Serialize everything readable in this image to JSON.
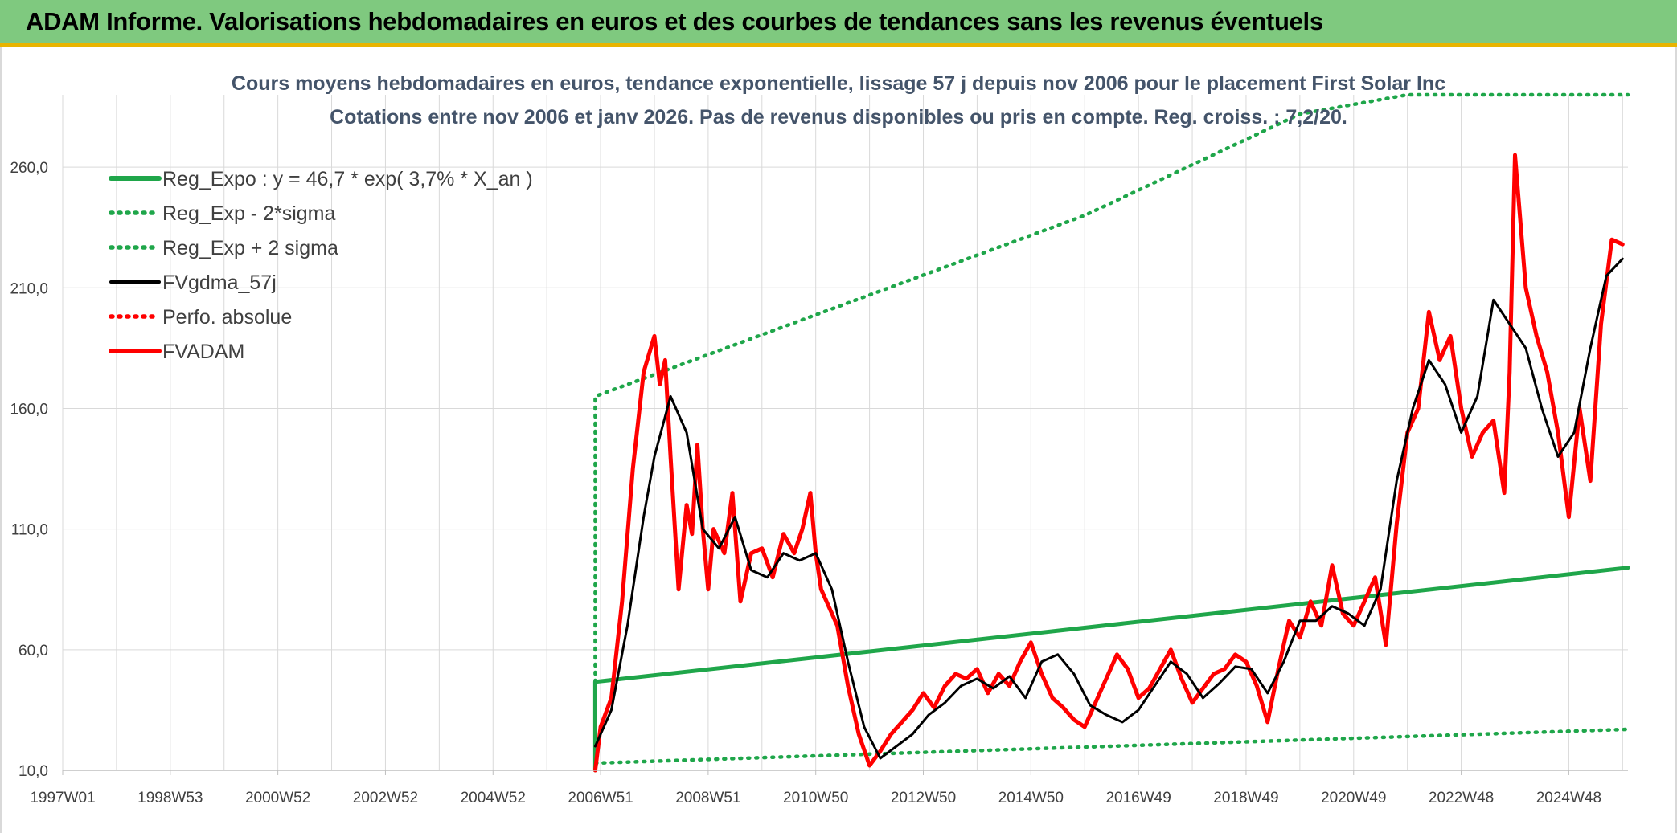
{
  "header": {
    "title": "ADAM Informe. Valorisations hebdomadaires en euros et des courbes de tendances sans les revenus éventuels"
  },
  "chart_data": {
    "type": "line",
    "title": "Cours moyens hebdomadaires en euros, tendance exponentielle, lissage 57 j depuis nov 2006 pour le placement First Solar Inc",
    "subtitle": "Cotations entre nov 2006 et janv 2026. Pas de revenus disponibles ou pris en compte. Reg. croiss. : 7,2/20.",
    "xlabel": "",
    "ylabel": "",
    "x_ticks": [
      "1997W01",
      "1998W53",
      "2000W52",
      "2002W52",
      "2004W52",
      "2006W51",
      "2008W51",
      "2010W50",
      "2012W50",
      "2014W50",
      "2016W49",
      "2018W49",
      "2020W49",
      "2022W48",
      "2024W48"
    ],
    "x_range": [
      1997.0,
      2026.1
    ],
    "y_ticks": [
      10,
      60,
      110,
      160,
      210,
      260
    ],
    "y_tick_labels": [
      "10,0",
      "60,0",
      "110,0",
      "160,0",
      "210,0",
      "260,0"
    ],
    "ylim": [
      10,
      290
    ],
    "grid": true,
    "legend_position": "top-left",
    "series": [
      {
        "name": "Reg_Expo : y = 46,7 * exp( 3,7% *  X_an )",
        "style": "solid-thick",
        "color": "#1fa64a",
        "x": [
          2006.9,
          2006.9,
          2026.1
        ],
        "y": [
          10,
          46.7,
          94
        ]
      },
      {
        "name": "Reg_Exp - 2*sigma",
        "style": "dotted",
        "color": "#1fa64a",
        "x": [
          2006.9,
          2026.1
        ],
        "y": [
          13,
          27
        ]
      },
      {
        "name": "Reg_Exp + 2 sigma",
        "style": "dotted",
        "color": "#1fa64a",
        "x": [
          2006.9,
          2006.9,
          2016,
          2020,
          2022,
          2026.1
        ],
        "y": [
          10,
          165,
          240,
          282,
          290,
          290
        ]
      },
      {
        "name": "FVgdma_57j",
        "style": "solid",
        "color": "#000000",
        "x": [
          2006.9,
          2007.2,
          2007.5,
          2007.8,
          2008.0,
          2008.3,
          2008.6,
          2008.9,
          2009.2,
          2009.5,
          2009.8,
          2010.1,
          2010.4,
          2010.7,
          2011.0,
          2011.3,
          2011.6,
          2011.9,
          2012.2,
          2012.5,
          2012.8,
          2013.1,
          2013.4,
          2013.7,
          2014.0,
          2014.3,
          2014.6,
          2014.9,
          2015.2,
          2015.5,
          2015.8,
          2016.1,
          2016.4,
          2016.7,
          2017.0,
          2017.3,
          2017.6,
          2017.9,
          2018.2,
          2018.5,
          2018.8,
          2019.1,
          2019.4,
          2019.7,
          2020.0,
          2020.3,
          2020.6,
          2020.9,
          2021.2,
          2021.5,
          2021.8,
          2022.1,
          2022.4,
          2022.7,
          2023.0,
          2023.3,
          2023.6,
          2023.9,
          2024.2,
          2024.5,
          2024.8,
          2025.1,
          2025.4,
          2025.7,
          2026.0
        ],
        "y": [
          20,
          35,
          70,
          115,
          140,
          165,
          150,
          110,
          102,
          115,
          93,
          90,
          100,
          97,
          100,
          85,
          55,
          28,
          15,
          20,
          25,
          33,
          38,
          45,
          48,
          44,
          49,
          40,
          55,
          58,
          50,
          37,
          33,
          30,
          35,
          45,
          55,
          50,
          40,
          46,
          53,
          52,
          42,
          55,
          72,
          72,
          78,
          75,
          70,
          85,
          130,
          160,
          180,
          170,
          150,
          165,
          205,
          195,
          185,
          160,
          140,
          150,
          185,
          215,
          222
        ]
      },
      {
        "name": "Perfo. absolue",
        "style": "dotted",
        "color": "#ff0000",
        "x": [],
        "y": []
      },
      {
        "name": "FVADAM",
        "style": "solid-thick",
        "color": "#ff0000",
        "x": [
          2006.9,
          2007.0,
          2007.2,
          2007.4,
          2007.6,
          2007.8,
          2008.0,
          2008.1,
          2008.2,
          2008.3,
          2008.45,
          2008.6,
          2008.7,
          2008.8,
          2008.9,
          2009.0,
          2009.1,
          2009.3,
          2009.45,
          2009.6,
          2009.8,
          2010.0,
          2010.2,
          2010.4,
          2010.6,
          2010.75,
          2010.9,
          2011.0,
          2011.1,
          2011.4,
          2011.6,
          2011.8,
          2012.0,
          2012.2,
          2012.4,
          2012.6,
          2012.8,
          2013.0,
          2013.2,
          2013.4,
          2013.6,
          2013.8,
          2014.0,
          2014.2,
          2014.4,
          2014.6,
          2014.8,
          2015.0,
          2015.2,
          2015.4,
          2015.6,
          2015.8,
          2016.0,
          2016.2,
          2016.4,
          2016.6,
          2016.8,
          2017.0,
          2017.2,
          2017.4,
          2017.6,
          2017.8,
          2018.0,
          2018.2,
          2018.4,
          2018.6,
          2018.8,
          2019.0,
          2019.2,
          2019.4,
          2019.6,
          2019.8,
          2020.0,
          2020.2,
          2020.4,
          2020.6,
          2020.8,
          2021.0,
          2021.2,
          2021.4,
          2021.6,
          2021.8,
          2022.0,
          2022.2,
          2022.4,
          2022.6,
          2022.8,
          2023.0,
          2023.2,
          2023.4,
          2023.6,
          2023.8,
          2023.9,
          2024.0,
          2024.2,
          2024.4,
          2024.6,
          2024.8,
          2025.0,
          2025.2,
          2025.4,
          2025.6,
          2025.8,
          2026.0
        ],
        "y": [
          10,
          28,
          40,
          80,
          135,
          175,
          190,
          170,
          180,
          140,
          85,
          120,
          108,
          145,
          110,
          85,
          110,
          100,
          125,
          80,
          100,
          102,
          90,
          108,
          100,
          110,
          125,
          100,
          85,
          70,
          45,
          25,
          12,
          18,
          25,
          30,
          35,
          42,
          36,
          45,
          50,
          48,
          52,
          42,
          50,
          45,
          55,
          63,
          50,
          40,
          36,
          31,
          28,
          38,
          48,
          58,
          52,
          40,
          44,
          52,
          60,
          48,
          38,
          44,
          50,
          52,
          58,
          55,
          45,
          30,
          52,
          72,
          65,
          80,
          70,
          95,
          75,
          70,
          80,
          90,
          62,
          112,
          150,
          160,
          200,
          180,
          190,
          160,
          140,
          150,
          155,
          125,
          175,
          265,
          210,
          190,
          175,
          150,
          115,
          160,
          130,
          195,
          230,
          228
        ]
      }
    ]
  }
}
